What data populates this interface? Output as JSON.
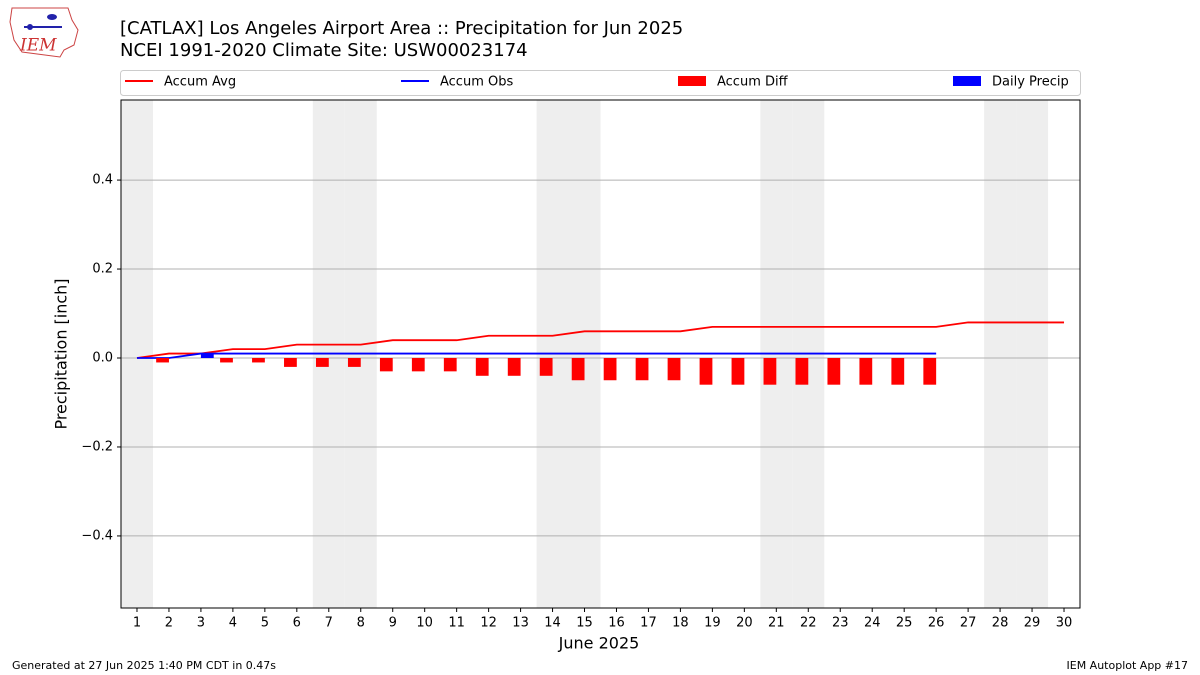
{
  "logo_text": "IEM",
  "footer_left": "Generated at 27 Jun 2025 1:40 PM CDT in 0.47s",
  "footer_right": "IEM Autoplot App #17",
  "chart_data": {
    "type": "bar-line",
    "title": "[CATLAX] Los Angeles Airport Area :: Precipitation for Jun 2025",
    "subtitle": "NCEI 1991-2020 Climate Site: USW00023174",
    "x_label": "June 2025",
    "y_label": "Precipitation [inch]",
    "x": [
      1,
      2,
      3,
      4,
      5,
      6,
      7,
      8,
      9,
      10,
      11,
      12,
      13,
      14,
      15,
      16,
      17,
      18,
      19,
      20,
      21,
      22,
      23,
      24,
      25,
      26,
      27,
      28,
      29,
      30
    ],
    "xlim": [
      0.5,
      30.5
    ],
    "xticks": [
      1,
      2,
      3,
      4,
      5,
      6,
      7,
      8,
      9,
      10,
      11,
      12,
      13,
      14,
      15,
      16,
      17,
      18,
      19,
      20,
      21,
      22,
      23,
      24,
      25,
      26,
      27,
      28,
      29,
      30
    ],
    "ylim": [
      -0.562,
      0.58
    ],
    "yticks": [
      {
        "value": -0.4,
        "label": "−0.4"
      },
      {
        "value": -0.2,
        "label": "−0.2"
      },
      {
        "value": 0,
        "label": "0.0"
      },
      0.2,
      0.4
    ],
    "grid": true,
    "shaded_days": [
      1,
      7,
      8,
      14,
      15,
      21,
      22,
      28,
      29
    ],
    "shade_color": "#eeeeee",
    "series": [
      {
        "name": "Accum Avg",
        "kind": "line",
        "color": "#ff0000",
        "values": [
          0,
          0.01,
          0.01,
          0.02,
          0.02,
          0.03,
          0.03,
          0.03,
          0.04,
          0.04,
          0.04,
          0.05,
          0.05,
          0.05,
          0.06,
          0.06,
          0.06,
          0.06,
          0.07,
          0.07,
          0.07,
          0.07,
          0.07,
          0.07,
          0.07,
          0.07,
          0.08,
          0.08,
          0.08,
          0.08
        ]
      },
      {
        "name": "Accum Obs",
        "kind": "line",
        "color": "#0000ff",
        "values": [
          0,
          0,
          0.01,
          0.01,
          0.01,
          0.01,
          0.01,
          0.01,
          0.01,
          0.01,
          0.01,
          0.01,
          0.01,
          0.01,
          0.01,
          0.01,
          0.01,
          0.01,
          0.01,
          0.01,
          0.01,
          0.01,
          0.01,
          0.01,
          0.01,
          0.01,
          null,
          null,
          null,
          null
        ]
      },
      {
        "name": "Accum Diff",
        "kind": "bar",
        "offset": -0.2,
        "color": "#ff0000",
        "values": [
          0,
          -0.01,
          0,
          -0.01,
          -0.01,
          -0.02,
          -0.02,
          -0.02,
          -0.03,
          -0.03,
          -0.03,
          -0.04,
          -0.04,
          -0.04,
          -0.05,
          -0.05,
          -0.05,
          -0.05,
          -0.06,
          -0.06,
          -0.06,
          -0.06,
          -0.06,
          -0.06,
          -0.06,
          -0.06,
          null,
          null,
          null,
          null
        ]
      },
      {
        "name": "Daily Precip",
        "kind": "bar",
        "offset": 0.2,
        "color": "#0000ff",
        "values": [
          0,
          0,
          0.01,
          0,
          0,
          0,
          0,
          0,
          0,
          0,
          0,
          0,
          0,
          0,
          0,
          0,
          0,
          0,
          0,
          0,
          0,
          0,
          0,
          0,
          0,
          0,
          null,
          null,
          null,
          null
        ]
      }
    ]
  }
}
